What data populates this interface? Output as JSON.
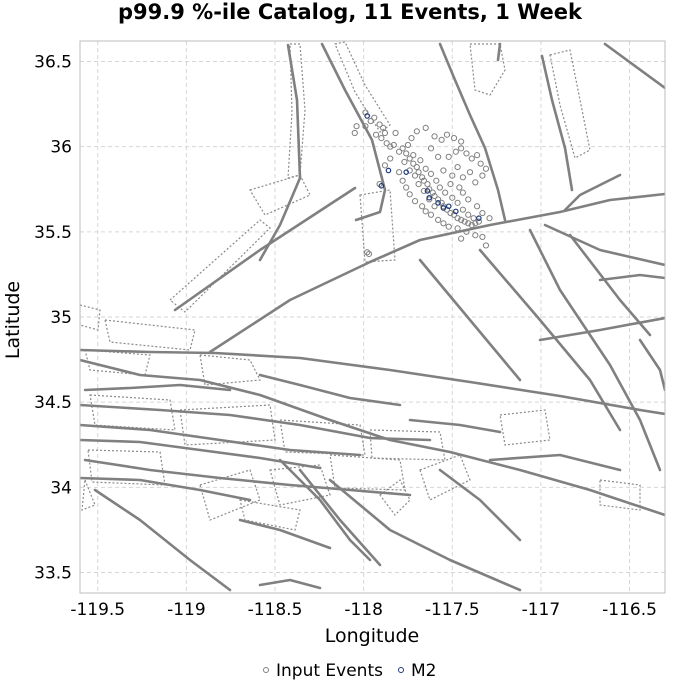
{
  "chart_data": {
    "type": "scatter",
    "title": "p99.9 %-ile Catalog, 11 Events, 1 Week",
    "xlabel": "Longitude",
    "ylabel": "Latitude",
    "xlim": [
      -119.6,
      -116.3
    ],
    "ylim": [
      33.38,
      36.62
    ],
    "x_ticks": [
      -119.5,
      -119,
      -118.5,
      -118,
      -117.5,
      -117,
      -116.5
    ],
    "y_ticks": [
      33.5,
      34,
      34.5,
      35,
      35.5,
      36,
      36.5
    ],
    "x_tick_labels": [
      "-119.5",
      "-119",
      "-118.5",
      "-118",
      "-117.5",
      "-117",
      "-116.5"
    ],
    "y_tick_labels": [
      "33.5",
      "34",
      "34.5",
      "35",
      "35.5",
      "36",
      "36.5"
    ],
    "grid": true,
    "legend_position": "bottom-center",
    "series": [
      {
        "name": "Input Events",
        "color": "#808080",
        "marker": "open-circle",
        "points": [
          [
            -117.99,
            36.2
          ],
          [
            -117.96,
            36.15
          ],
          [
            -117.94,
            36.17
          ],
          [
            -117.91,
            36.13
          ],
          [
            -117.89,
            36.11
          ],
          [
            -117.88,
            36.08
          ],
          [
            -117.9,
            36.05
          ],
          [
            -117.87,
            36.02
          ],
          [
            -117.85,
            36.0
          ],
          [
            -117.99,
            36.12
          ],
          [
            -117.78,
            35.99
          ],
          [
            -117.76,
            35.96
          ],
          [
            -117.74,
            35.93
          ],
          [
            -117.72,
            35.9
          ],
          [
            -117.7,
            35.88
          ],
          [
            -117.69,
            35.85
          ],
          [
            -117.67,
            35.82
          ],
          [
            -117.66,
            35.8
          ],
          [
            -117.64,
            35.78
          ],
          [
            -117.63,
            35.75
          ],
          [
            -117.61,
            35.73
          ],
          [
            -117.6,
            35.71
          ],
          [
            -117.58,
            35.69
          ],
          [
            -117.56,
            35.67
          ],
          [
            -117.55,
            35.65
          ],
          [
            -117.53,
            35.63
          ],
          [
            -117.51,
            35.61
          ],
          [
            -117.49,
            35.6
          ],
          [
            -117.47,
            35.58
          ],
          [
            -117.45,
            35.57
          ],
          [
            -117.43,
            35.56
          ],
          [
            -117.41,
            35.55
          ],
          [
            -117.39,
            35.54
          ],
          [
            -117.37,
            35.55
          ],
          [
            -117.35,
            35.56
          ],
          [
            -117.72,
            35.95
          ],
          [
            -117.68,
            35.92
          ],
          [
            -117.65,
            35.87
          ],
          [
            -117.62,
            35.84
          ],
          [
            -117.59,
            35.8
          ],
          [
            -117.57,
            35.76
          ],
          [
            -117.54,
            35.73
          ],
          [
            -117.5,
            35.7
          ],
          [
            -117.47,
            35.67
          ],
          [
            -117.44,
            35.63
          ],
          [
            -117.41,
            35.6
          ],
          [
            -117.38,
            35.58
          ],
          [
            -117.52,
            35.94
          ],
          [
            -117.48,
            35.97
          ],
          [
            -117.45,
            35.99
          ],
          [
            -117.42,
            35.96
          ],
          [
            -117.39,
            35.93
          ],
          [
            -117.36,
            35.95
          ],
          [
            -117.34,
            35.9
          ],
          [
            -117.31,
            35.87
          ],
          [
            -117.4,
            35.85
          ],
          [
            -117.44,
            35.82
          ],
          [
            -117.47,
            35.88
          ],
          [
            -117.5,
            35.83
          ],
          [
            -117.37,
            35.79
          ],
          [
            -117.33,
            35.83
          ],
          [
            -117.6,
            36.06
          ],
          [
            -117.56,
            36.04
          ],
          [
            -117.53,
            36.07
          ],
          [
            -117.49,
            36.05
          ],
          [
            -117.45,
            36.03
          ],
          [
            -117.73,
            36.05
          ],
          [
            -117.82,
            36.08
          ],
          [
            -117.85,
            35.93
          ],
          [
            -117.88,
            35.89
          ],
          [
            -117.8,
            35.85
          ],
          [
            -117.78,
            35.8
          ],
          [
            -117.76,
            35.76
          ],
          [
            -117.74,
            35.72
          ],
          [
            -117.71,
            35.68
          ],
          [
            -117.67,
            35.65
          ],
          [
            -117.65,
            35.62
          ],
          [
            -117.62,
            35.6
          ],
          [
            -117.58,
            35.57
          ],
          [
            -117.55,
            35.55
          ],
          [
            -117.52,
            35.53
          ],
          [
            -117.47,
            35.52
          ],
          [
            -117.42,
            35.5
          ],
          [
            -117.37,
            35.48
          ],
          [
            -117.33,
            35.47
          ],
          [
            -117.31,
            35.42
          ],
          [
            -117.45,
            35.46
          ],
          [
            -117.6,
            35.65
          ],
          [
            -117.63,
            35.69
          ],
          [
            -117.66,
            35.74
          ],
          [
            -117.69,
            35.78
          ],
          [
            -117.71,
            35.83
          ],
          [
            -117.74,
            35.86
          ],
          [
            -117.77,
            35.91
          ],
          [
            -117.8,
            35.97
          ],
          [
            -117.83,
            36.01
          ],
          [
            -117.93,
            36.07
          ],
          [
            -118.04,
            36.12
          ],
          [
            -118.05,
            36.08
          ],
          [
            -117.75,
            36.01
          ],
          [
            -117.7,
            36.09
          ],
          [
            -117.65,
            36.11
          ],
          [
            -117.91,
            35.78
          ],
          [
            -117.98,
            35.38
          ],
          [
            -117.97,
            35.37
          ],
          [
            -117.58,
            35.94
          ],
          [
            -117.62,
            35.99
          ],
          [
            -117.44,
            35.73
          ],
          [
            -117.41,
            35.69
          ],
          [
            -117.36,
            35.65
          ],
          [
            -117.33,
            35.61
          ],
          [
            -117.29,
            35.58
          ],
          [
            -117.55,
            35.86
          ],
          [
            -117.51,
            35.78
          ],
          [
            -117.46,
            35.76
          ]
        ]
      },
      {
        "name": "M2",
        "color": "#1f3a7a",
        "marker": "open-circle",
        "points": [
          [
            -117.98,
            36.18
          ],
          [
            -117.9,
            35.77
          ],
          [
            -117.86,
            35.86
          ],
          [
            -117.76,
            35.85
          ],
          [
            -117.64,
            35.74
          ],
          [
            -117.63,
            35.7
          ],
          [
            -117.58,
            35.67
          ],
          [
            -117.55,
            35.64
          ],
          [
            -117.52,
            35.65
          ],
          [
            -117.48,
            35.62
          ],
          [
            -117.35,
            35.58
          ]
        ]
      }
    ]
  }
}
